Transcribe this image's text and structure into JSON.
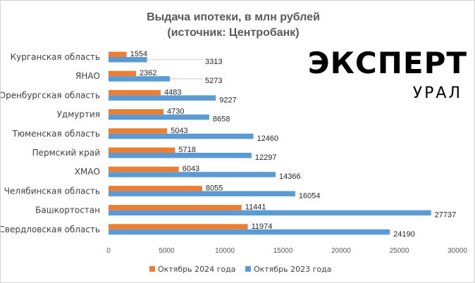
{
  "chart_data": {
    "type": "bar",
    "orientation": "horizontal",
    "title_line1": "Выдача ипотеки, в млн рублей",
    "title_line2": "(источник: Центробанк)",
    "categories": [
      "Курганская  область",
      "ЯНАО",
      "Оренбургская  область",
      "Удмуртия",
      "Тюменская область",
      "Пермский край",
      "ХМАО",
      "Челябинская  область",
      "Башкортостан",
      "Свердловская  область"
    ],
    "series": [
      {
        "name": "Октябрь 2024  года",
        "color": "#ED7D31",
        "values": [
          1554,
          2362,
          4483,
          4730,
          5043,
          5718,
          6043,
          8055,
          11441,
          11974
        ]
      },
      {
        "name": "Октябрь 2023  года",
        "color": "#5B9BD5",
        "values": [
          3313,
          5273,
          9227,
          8658,
          12460,
          12297,
          14366,
          16054,
          27737,
          24190
        ]
      }
    ],
    "xlim": [
      0,
      30000
    ],
    "xticks": [
      0,
      5000,
      10000,
      15000,
      20000,
      25000,
      30000
    ],
    "grid": false,
    "legend_position": "bottom"
  },
  "logo": {
    "main": "ЭКСПЕРТ",
    "sub": "УРАЛ"
  }
}
